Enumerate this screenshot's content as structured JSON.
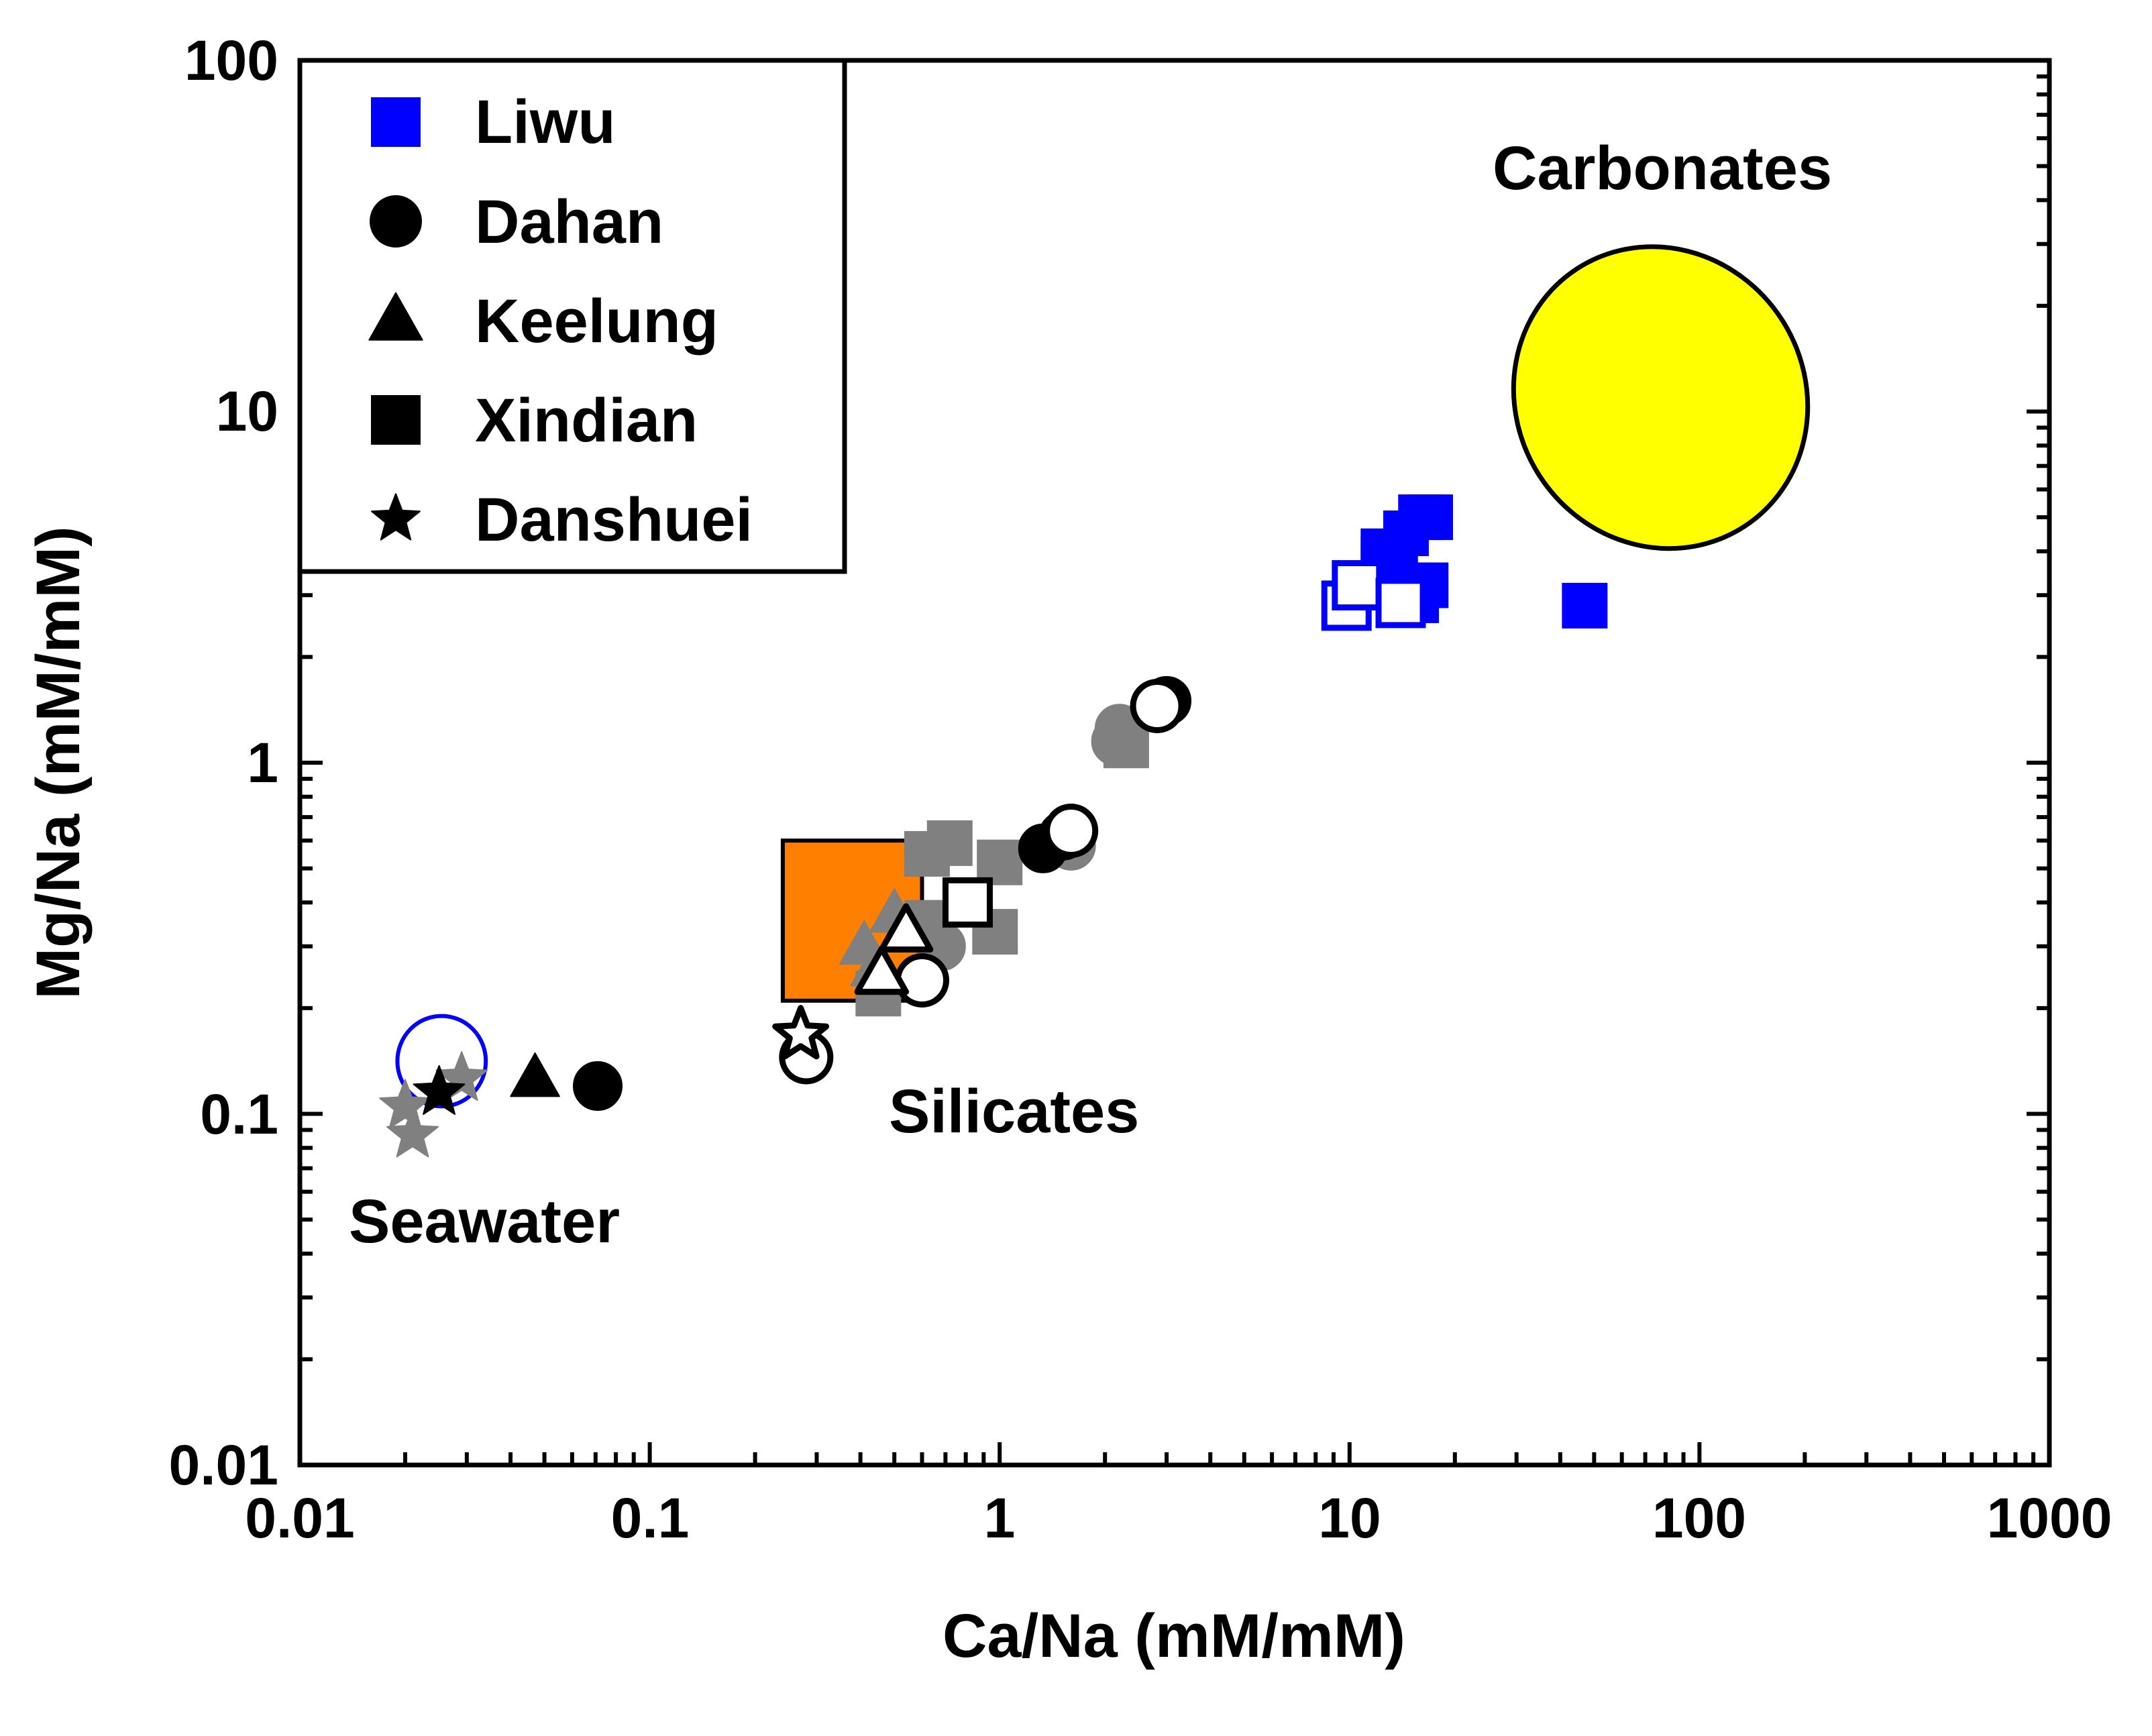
{
  "chart_data": {
    "type": "scatter",
    "xscale": "log",
    "yscale": "log",
    "xlim": [
      0.01,
      1000
    ],
    "ylim": [
      0.01,
      100
    ],
    "xlabel": "Ca/Na (mM/mM)",
    "ylabel": "Mg/Na (mM/mM)",
    "x_tick_labels": [
      "0.01",
      "0.1",
      "1",
      "10",
      "100",
      "1000"
    ],
    "y_tick_labels": [
      "0.01",
      "0.1",
      "1",
      "10",
      "100"
    ],
    "x_ticks": [
      0.01,
      0.1,
      1,
      10,
      100,
      1000
    ],
    "y_ticks": [
      0.01,
      0.1,
      1,
      10,
      100
    ],
    "legend": {
      "position": "top-left",
      "entries": [
        {
          "label": "Liwu",
          "marker": "square",
          "color": "#0000ff"
        },
        {
          "label": "Dahan",
          "marker": "circle",
          "color": "#000000"
        },
        {
          "label": "Keelung",
          "marker": "triangle",
          "color": "#000000"
        },
        {
          "label": "Xindian",
          "marker": "square",
          "color": "#000000"
        },
        {
          "label": "Danshuei",
          "marker": "star",
          "color": "#000000"
        }
      ]
    },
    "annotations": [
      "Carbonates",
      "Silicates",
      "Seawater"
    ],
    "regions": [
      {
        "name": "Carbonates",
        "shape": "ellipse",
        "fill": "#ffff00",
        "stroke": "#000000",
        "x_range": [
          30,
          200
        ],
        "y_range": [
          4,
          30
        ]
      },
      {
        "name": "Silicates",
        "shape": "rectangle",
        "fill": "#ff8000",
        "stroke": "#000000",
        "x_range": [
          0.24,
          0.6
        ],
        "y_range": [
          0.21,
          0.6
        ]
      },
      {
        "name": "Seawater",
        "shape": "ellipse",
        "fill": "none",
        "stroke": "#0000ff",
        "x_range": [
          0.019,
          0.034
        ],
        "y_range": [
          0.105,
          0.19
        ]
      }
    ],
    "colors": {
      "liwu": "#0000ff",
      "black": "#000000",
      "gray": "#808080",
      "carbonates": "#ffff00",
      "silicates": "#ff8000"
    },
    "series": [
      {
        "name": "Liwu filled",
        "marker": "square",
        "fill": "#0000ff",
        "stroke": "#0000ff",
        "points": [
          [
            12.5,
            4.0
          ],
          [
            14.5,
            4.5
          ],
          [
            16,
            5.0
          ],
          [
            17,
            5.0
          ],
          [
            13.5,
            3.6
          ],
          [
            14.5,
            3.2
          ],
          [
            16.5,
            3.2
          ],
          [
            15.5,
            2.9
          ],
          [
            12.5,
            3.8
          ],
          [
            47,
            2.8
          ]
        ]
      },
      {
        "name": "Liwu open",
        "marker": "square",
        "fill": "#ffffff",
        "stroke": "#0000ff",
        "points": [
          [
            9.8,
            2.8
          ],
          [
            10.5,
            3.2
          ],
          [
            14,
            2.85
          ]
        ]
      },
      {
        "name": "Xindian gray",
        "marker": "square",
        "fill": "#808080",
        "stroke": "#808080",
        "points": [
          [
            0.72,
            0.59
          ],
          [
            0.62,
            0.55
          ],
          [
            1.0,
            0.52
          ],
          [
            0.97,
            0.33
          ],
          [
            0.45,
            0.22
          ],
          [
            0.62,
            0.35
          ],
          [
            2.3,
            1.12
          ]
        ]
      },
      {
        "name": "Dahan gray",
        "marker": "circle",
        "fill": "#808080",
        "stroke": "#808080",
        "points": [
          [
            2.2,
            1.25
          ],
          [
            2.15,
            1.15
          ],
          [
            0.68,
            0.3
          ],
          [
            1.6,
            0.58
          ]
        ]
      },
      {
        "name": "Keelung gray",
        "marker": "triangle",
        "fill": "#808080",
        "stroke": "#808080",
        "points": [
          [
            0.41,
            0.3
          ],
          [
            0.5,
            0.37
          ],
          [
            0.44,
            0.26
          ]
        ]
      },
      {
        "name": "Danshuei gray",
        "marker": "star",
        "fill": "#808080",
        "stroke": "#808080",
        "points": [
          [
            0.02,
            0.105
          ],
          [
            0.021,
            0.087
          ],
          [
            0.029,
            0.126
          ]
        ]
      },
      {
        "name": "Dahan black",
        "marker": "circle",
        "fill": "#000000",
        "stroke": "#000000",
        "points": [
          [
            0.071,
            0.12
          ],
          [
            1.33,
            0.57
          ],
          [
            3.0,
            1.5
          ],
          [
            1.52,
            0.62
          ]
        ]
      },
      {
        "name": "Dahan open",
        "marker": "circle",
        "fill": "#ffffff",
        "stroke": "#000000",
        "points": [
          [
            2.82,
            1.45
          ],
          [
            1.6,
            0.64
          ],
          [
            0.6,
            0.24
          ],
          [
            0.28,
            0.145
          ]
        ]
      },
      {
        "name": "Keelung black",
        "marker": "triangle",
        "fill": "#000000",
        "stroke": "#000000",
        "points": [
          [
            0.047,
            0.126
          ]
        ]
      },
      {
        "name": "Keelung open",
        "marker": "triangle",
        "fill": "#ffffff",
        "stroke": "#000000",
        "points": [
          [
            0.54,
            0.33
          ],
          [
            0.46,
            0.25
          ]
        ]
      },
      {
        "name": "Xindian open",
        "marker": "square",
        "fill": "#ffffff",
        "stroke": "#000000",
        "points": [
          [
            0.81,
            0.4
          ]
        ]
      },
      {
        "name": "Danshuei black",
        "marker": "star",
        "fill": "#000000",
        "stroke": "#000000",
        "points": [
          [
            0.025,
            0.115
          ]
        ]
      },
      {
        "name": "Danshuei open",
        "marker": "star",
        "fill": "#ffffff",
        "stroke": "#000000",
        "points": [
          [
            0.27,
            0.168
          ]
        ]
      }
    ]
  }
}
